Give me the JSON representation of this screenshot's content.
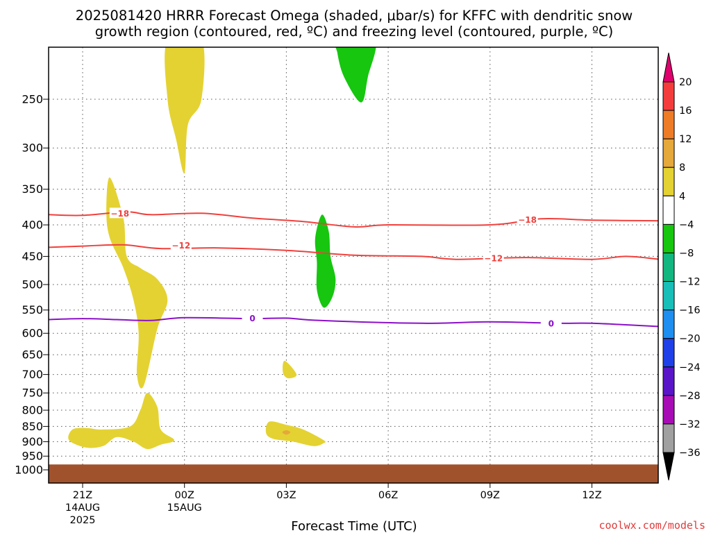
{
  "chart_data": {
    "type": "heatmap",
    "title_line1": "2025081420 HRRR Forecast Omega (shaded, μbar/s) for KFFC with dendritic snow",
    "title_line2": "growth region (contoured, red, ºC) and freezing level (contoured, purple, ºC)",
    "xlabel": "Forecast Time (UTC)",
    "credit": "coolwx.com/models",
    "x_ticks": [
      {
        "hour": 0,
        "label": "21Z",
        "sub1": "14AUG",
        "sub2": "2025"
      },
      {
        "hour": 3,
        "label": "00Z",
        "sub1": "15AUG",
        "sub2": ""
      },
      {
        "hour": 6,
        "label": "03Z",
        "sub1": "",
        "sub2": ""
      },
      {
        "hour": 9,
        "label": "06Z",
        "sub1": "",
        "sub2": ""
      },
      {
        "hour": 12,
        "label": "09Z",
        "sub1": "",
        "sub2": ""
      },
      {
        "hour": 15,
        "label": "12Z",
        "sub1": "",
        "sub2": ""
      }
    ],
    "xlim": [
      -1,
      17
    ],
    "y_ticks": [
      250,
      300,
      350,
      400,
      450,
      500,
      550,
      600,
      650,
      700,
      750,
      800,
      850,
      900,
      950,
      1000
    ],
    "y_tick_labels": [
      "250",
      "300",
      "350",
      "400",
      "450",
      "500",
      "550",
      "600",
      "650",
      "700",
      "750",
      "800",
      "850",
      "900",
      "950",
      "1000"
    ],
    "ylim": [
      200,
      1030
    ],
    "y_scale": "log-pressure (inverted)",
    "grid": true,
    "colorbar": {
      "labels": [
        "20",
        "16",
        "12",
        "8",
        "4",
        "−4",
        "−8",
        "−12",
        "−16",
        "−20",
        "−24",
        "−28",
        "−32",
        "−36"
      ],
      "bins": [
        {
          "color": "#f53c3c"
        },
        {
          "color": "#ee7c27"
        },
        {
          "color": "#e5a83b"
        },
        {
          "color": "#e4d232"
        },
        {
          "color": "#ffffff"
        },
        {
          "color": "#16c60f"
        },
        {
          "color": "#12b77f"
        },
        {
          "color": "#17bfb8"
        },
        {
          "color": "#1e8ef0"
        },
        {
          "color": "#1f3fe8"
        },
        {
          "color": "#5a15c8"
        },
        {
          "color": "#a80db5"
        },
        {
          "color": "#a0a0a0"
        }
      ],
      "top_color": "#e0006e",
      "bottom_color": "#000000"
    },
    "omega_regions": [
      {
        "name": "yellow-upper",
        "value": "4 to 8",
        "color": "#e4d232",
        "points": [
          [
            2.5,
            200
          ],
          [
            3.5,
            200
          ],
          [
            3.5,
            250
          ],
          [
            3.1,
            275
          ],
          [
            3,
            330
          ],
          [
            2.75,
            290
          ],
          [
            2.5,
            250
          ]
        ]
      },
      {
        "name": "yellow-column",
        "value": "4 to 8",
        "color": "#e4d232",
        "points": [
          [
            0.8,
            335
          ],
          [
            1.2,
            390
          ],
          [
            1.3,
            450
          ],
          [
            1.7,
            470
          ],
          [
            2.2,
            490
          ],
          [
            2.5,
            530
          ],
          [
            2.2,
            590
          ],
          [
            1.8,
            730
          ],
          [
            1.6,
            700
          ],
          [
            1.65,
            600
          ],
          [
            1.5,
            530
          ],
          [
            1.2,
            470
          ],
          [
            0.8,
            420
          ],
          [
            0.7,
            380
          ]
        ]
      },
      {
        "name": "yellow-lower",
        "value": "4 to 8",
        "color": "#e4d232",
        "points": [
          [
            1.9,
            750
          ],
          [
            2.2,
            790
          ],
          [
            2.3,
            860
          ],
          [
            2.7,
            895
          ],
          [
            2.3,
            910
          ],
          [
            1.9,
            925
          ],
          [
            1.5,
            900
          ],
          [
            1.0,
            885
          ],
          [
            0.6,
            915
          ],
          [
            0.1,
            920
          ],
          [
            -0.4,
            895
          ],
          [
            -0.3,
            860
          ],
          [
            0.1,
            855
          ],
          [
            0.6,
            860
          ],
          [
            1.4,
            850
          ],
          [
            1.7,
            800
          ]
        ]
      },
      {
        "name": "yellow-small-700",
        "value": "4 to 8",
        "color": "#e4d232",
        "points": [
          [
            5.95,
            665
          ],
          [
            6.3,
            700
          ],
          [
            6.05,
            710
          ],
          [
            5.9,
            695
          ]
        ]
      },
      {
        "name": "yellow-03z",
        "value": "4 to 8",
        "color": "#e4d232",
        "points": [
          [
            5.5,
            835
          ],
          [
            6,
            845
          ],
          [
            6.5,
            860
          ],
          [
            7.1,
            895
          ],
          [
            7.1,
            905
          ],
          [
            6.8,
            915
          ],
          [
            6.2,
            900
          ],
          [
            5.6,
            890
          ],
          [
            5.4,
            870
          ]
        ]
      },
      {
        "name": "orange-spot",
        "value": "8 to 12",
        "color": "#e5a83b",
        "points": [
          [
            5.88,
            869
          ],
          [
            6.0,
            862
          ],
          [
            6.12,
            869
          ],
          [
            6.0,
            877
          ]
        ]
      },
      {
        "name": "green-upper",
        "value": "−4 to −8",
        "color": "#16c60f",
        "points": [
          [
            7.5,
            200
          ],
          [
            8.6,
            200
          ],
          [
            8.4,
            230
          ],
          [
            8.2,
            253
          ],
          [
            7.7,
            230
          ],
          [
            7.5,
            210
          ]
        ]
      },
      {
        "name": "green-mid",
        "value": "−4 to −8",
        "color": "#16c60f",
        "points": [
          [
            7.05,
            385
          ],
          [
            7.25,
            410
          ],
          [
            7.3,
            450
          ],
          [
            7.45,
            490
          ],
          [
            7.35,
            525
          ],
          [
            7.1,
            545
          ],
          [
            6.9,
            510
          ],
          [
            6.9,
            460
          ],
          [
            6.85,
            420
          ]
        ]
      }
    ],
    "contours": [
      {
        "name": "minus18",
        "kind": "dgz",
        "color": "#f0403c",
        "label": "−18",
        "labels_at": [
          [
            1.1,
            383
          ],
          [
            13.1,
            392
          ]
        ],
        "points": [
          [
            -1,
            385
          ],
          [
            0,
            386
          ],
          [
            1.3,
            381
          ],
          [
            2,
            385
          ],
          [
            3.5,
            383
          ],
          [
            5,
            390
          ],
          [
            6.5,
            395
          ],
          [
            8,
            403
          ],
          [
            9,
            400
          ],
          [
            12,
            400
          ],
          [
            13.5,
            391
          ],
          [
            15,
            393
          ],
          [
            17,
            394
          ]
        ]
      },
      {
        "name": "minus12",
        "kind": "dgz",
        "color": "#f0403c",
        "label": "−12",
        "labels_at": [
          [
            2.9,
            432
          ],
          [
            12.1,
            453
          ]
        ],
        "points": [
          [
            -1,
            435
          ],
          [
            0,
            433
          ],
          [
            1.2,
            431
          ],
          [
            2.3,
            437
          ],
          [
            4,
            436
          ],
          [
            6,
            440
          ],
          [
            8,
            448
          ],
          [
            10,
            450
          ],
          [
            11,
            455
          ],
          [
            13,
            452
          ],
          [
            15,
            455
          ],
          [
            16,
            450
          ],
          [
            17,
            455
          ]
        ]
      },
      {
        "name": "zero",
        "kind": "freezing",
        "color": "#8a10c8",
        "label": "0",
        "labels_at": [
          [
            5,
            567
          ],
          [
            13.8,
            578
          ]
        ],
        "points": [
          [
            -1,
            570
          ],
          [
            0,
            568
          ],
          [
            1,
            570
          ],
          [
            2,
            572
          ],
          [
            3,
            566
          ],
          [
            5,
            568
          ],
          [
            6,
            567
          ],
          [
            7,
            572
          ],
          [
            10,
            578
          ],
          [
            12,
            575
          ],
          [
            14,
            578
          ],
          [
            15,
            578
          ],
          [
            17,
            585
          ]
        ]
      }
    ],
    "ground": {
      "color": "#a0522d",
      "p_top": 980,
      "p_bottom": 1030
    }
  }
}
